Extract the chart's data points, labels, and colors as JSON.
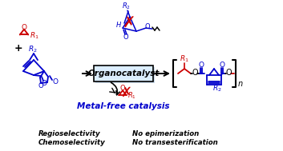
{
  "bg_color": "#ffffff",
  "box_color": "#dceeff",
  "box_border_color": "#000000",
  "box_text": "Organocatalyst",
  "red_color": "#cc0000",
  "blue_color": "#0000cc",
  "black_color": "#000000",
  "metal_free_text": "Metal-free catalysis",
  "bottom_texts": [
    [
      "Regioselectivity",
      "No epimerization"
    ],
    [
      "Chemoselectivity",
      "No transesterification"
    ]
  ],
  "figsize": [
    3.53,
    1.89
  ],
  "dpi": 100
}
